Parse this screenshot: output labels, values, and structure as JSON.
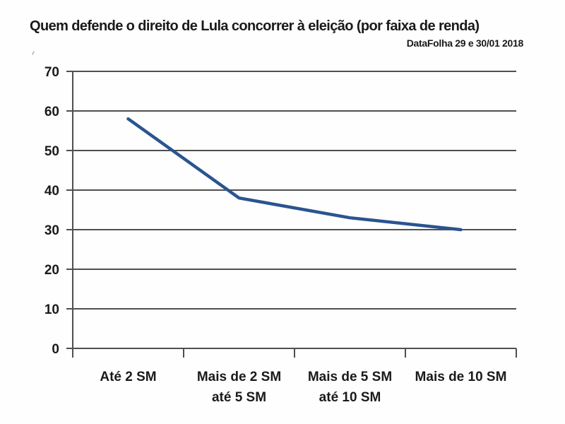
{
  "chart_data": {
    "type": "line",
    "title": "Quem defende o direito de Lula concorrer à eleição (por faixa de renda)",
    "source": "DataFolha 29 e 30/01 2018",
    "categories": [
      "Até 2 SM",
      "Mais de 2 SM até 5 SM",
      "Mais de 5 SM até 10 SM",
      "Mais de 10 SM"
    ],
    "category_label_lines": [
      [
        "Até 2 SM"
      ],
      [
        "Mais de 2 SM",
        "até 5 SM"
      ],
      [
        "Mais de 5 SM",
        "até 10 SM"
      ],
      [
        "Mais de 10 SM"
      ]
    ],
    "values": [
      58,
      38,
      33,
      30
    ],
    "ylim": [
      0,
      70
    ],
    "yticks": [
      0,
      10,
      20,
      30,
      40,
      50,
      60,
      70
    ],
    "xlabel": "",
    "ylabel": "",
    "grid": "horizontal",
    "legend": false,
    "colors": {
      "line": "#2a5490",
      "grid": "#4f4f4f",
      "text": "#1a1a1a",
      "background": "#ffffff"
    }
  }
}
